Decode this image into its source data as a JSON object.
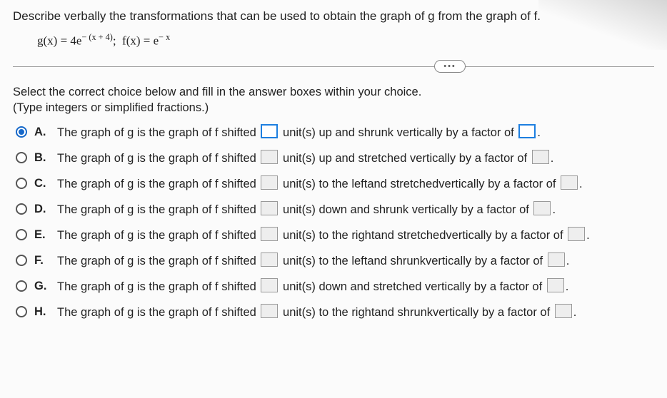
{
  "question": {
    "prompt": "Describe verbally the transformations that can be used to obtain the graph of g from the graph of f.",
    "formula_html": "g(x) = 4e<sup>− (x + 4)</sup>;&nbsp;&nbsp;f(x) = e<sup>− x</sup>",
    "instruction_line1": "Select the correct choice below and fill in the answer boxes within your choice.",
    "instruction_line2": "(Type integers or simplified fractions.)"
  },
  "ellipsis": "•••",
  "choices": [
    {
      "letter": "A.",
      "selected": true,
      "pre": "The graph of g is the graph of f shifted",
      "mid": "unit(s) up and shrunk vertically by a factor of"
    },
    {
      "letter": "B.",
      "selected": false,
      "pre": "The graph of g is the graph of f shifted",
      "mid": "unit(s) up and stretched vertically by a factor of"
    },
    {
      "letter": "C.",
      "selected": false,
      "pre": "The graph of g is the graph of f shifted",
      "mid": "unit(s) to the leftand stretchedvertically by a factor of"
    },
    {
      "letter": "D.",
      "selected": false,
      "pre": "The graph of g is the graph of f shifted",
      "mid": "unit(s) down and shrunk vertically by a factor of"
    },
    {
      "letter": "E.",
      "selected": false,
      "pre": "The graph of g is the graph of f shifted",
      "mid": "unit(s) to the rightand stretchedvertically by a factor of"
    },
    {
      "letter": "F.",
      "selected": false,
      "pre": "The graph of g is the graph of f shifted",
      "mid": "unit(s) to the leftand shrunkvertically by a factor of"
    },
    {
      "letter": "G.",
      "selected": false,
      "pre": "The graph of g is the graph of f shifted",
      "mid": "unit(s) down and stretched vertically by a factor of"
    },
    {
      "letter": "H.",
      "selected": false,
      "pre": "The graph of g is the graph of f shifted",
      "mid": "unit(s) to the rightand shrunkvertically by a factor of"
    }
  ],
  "period": "."
}
